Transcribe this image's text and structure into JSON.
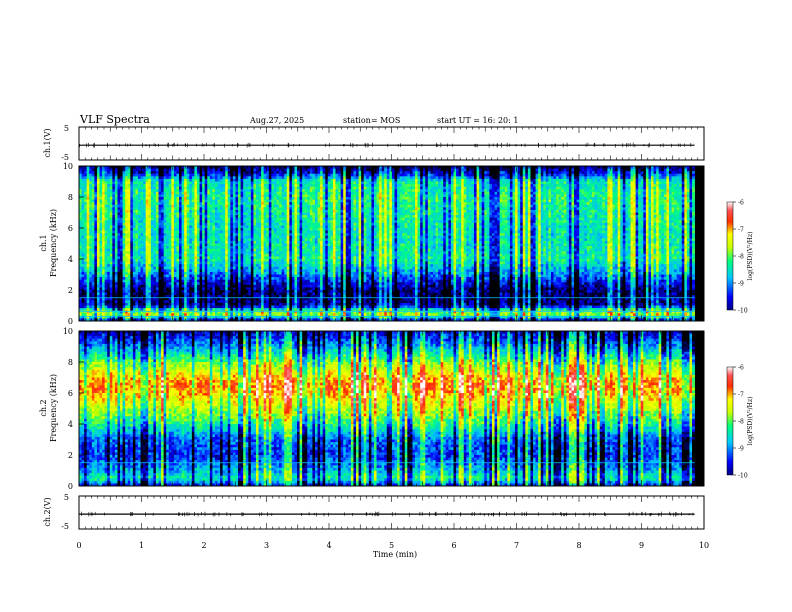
{
  "header": {
    "title": "VLF Spectra",
    "date": "Aug.27, 2025",
    "station": "station= MOS",
    "start": "start  UT =   16: 20: 1"
  },
  "colorbar": {
    "ticks": [
      "-6",
      "-7",
      "-8",
      "-9",
      "-10"
    ],
    "label": "log(PSD)(V²/Hz)"
  },
  "chart_data": [
    {
      "type": "line",
      "name": "ch1-waveform",
      "ylabel": "ch.1(V)",
      "ylim": [
        -5,
        5
      ],
      "yticks": [
        "5",
        "-5"
      ],
      "xlim": [
        0,
        10
      ],
      "x": [
        0,
        10
      ],
      "values": [
        -0.5,
        -0.5
      ]
    },
    {
      "type": "heatmap",
      "name": "ch1-spectrogram",
      "ylabel_top": "ch.1",
      "ylabel": "Frequency (kHz)",
      "ylim": [
        0,
        10
      ],
      "yticks": [
        "0",
        "2",
        "4",
        "6",
        "8",
        "10"
      ],
      "xlim": [
        0,
        10
      ],
      "zlim": [
        -10,
        -6
      ],
      "zlabel": "log(PSD)(V²/Hz)",
      "frequency_profile_khz": [
        0,
        0.5,
        1,
        2,
        3,
        4,
        5,
        6,
        7,
        8,
        9,
        9.5,
        10
      ],
      "typical_log_psd": [
        -9.6,
        -7.5,
        -9.6,
        -9.7,
        -8.9,
        -8.3,
        -8.4,
        -8.4,
        -8.3,
        -8.2,
        -8.4,
        -9.3,
        -9.8
      ],
      "tone_lines_khz": [
        0.3,
        0.6,
        1.5
      ]
    },
    {
      "type": "heatmap",
      "name": "ch2-spectrogram",
      "ylabel_top": "ch.2",
      "ylabel": "Frequency (kHz)",
      "ylim": [
        0,
        10
      ],
      "yticks": [
        "0",
        "2",
        "4",
        "6",
        "8",
        "10"
      ],
      "xlim": [
        0,
        10
      ],
      "zlim": [
        -10,
        -6
      ],
      "zlabel": "log(PSD)(V²/Hz)",
      "frequency_profile_khz": [
        0,
        0.5,
        1,
        2,
        3,
        4,
        5,
        6,
        6.5,
        7,
        8,
        9,
        10
      ],
      "typical_log_psd": [
        -9.3,
        -8.3,
        -8.7,
        -9.2,
        -9.0,
        -8.2,
        -7.6,
        -7.0,
        -6.9,
        -7.1,
        -7.9,
        -8.8,
        -9.5
      ],
      "tone_lines_khz": [
        1.5
      ]
    },
    {
      "type": "line",
      "name": "ch2-waveform",
      "ylabel": "ch.2(V)",
      "ylim": [
        -5,
        5
      ],
      "yticks": [
        "5",
        "-5"
      ],
      "xlim": [
        0,
        10
      ],
      "x": [
        0,
        10
      ],
      "values": [
        -0.5,
        -0.5
      ]
    }
  ],
  "xaxis": {
    "label": "Time (min)",
    "ticks": [
      "0",
      "1",
      "2",
      "3",
      "4",
      "5",
      "6",
      "7",
      "8",
      "9",
      "10"
    ]
  }
}
